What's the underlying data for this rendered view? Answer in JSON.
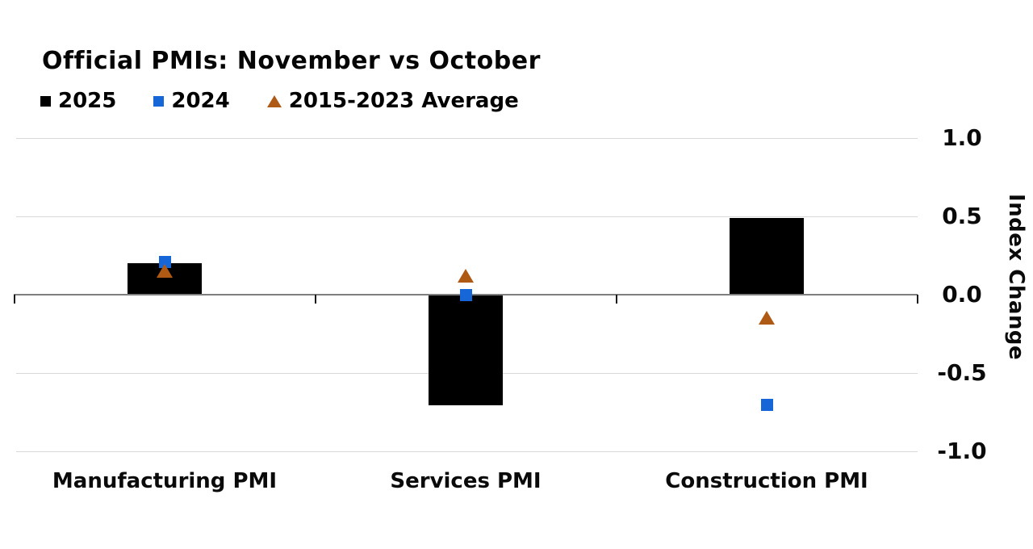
{
  "chart": {
    "title": "Official PMIs: November vs October",
    "y_axis_title": "Index Change"
  },
  "legend": {
    "items": [
      {
        "label": "2025",
        "marker": "square-icon",
        "color": "#000000"
      },
      {
        "label": "2024",
        "marker": "square-icon",
        "color": "#1766D8"
      },
      {
        "label": "2015-2023 Average",
        "marker": "triangle-icon",
        "color": "#AE5A15"
      }
    ]
  },
  "chart_data": {
    "type": "bar",
    "title": "Official PMIs: November vs October",
    "categories": [
      "Manufacturing PMI",
      "Services PMI",
      "Construction PMI"
    ],
    "series": [
      {
        "name": "2025",
        "type": "bar",
        "color": "#000000",
        "values": [
          0.2,
          -0.7,
          0.49
        ]
      },
      {
        "name": "2024",
        "type": "scatter-square",
        "color": "#1766D8",
        "values": [
          0.21,
          0.0,
          -0.7
        ]
      },
      {
        "name": "2015-2023 Average",
        "type": "scatter-triangle",
        "color": "#AE5A15",
        "values": [
          0.15,
          0.12,
          -0.15
        ]
      }
    ],
    "xlabel": "",
    "ylabel": "Index Change",
    "ylim": [
      -1.0,
      1.0
    ],
    "y_ticks": [
      1.0,
      0.5,
      0.0,
      -0.5,
      -1.0
    ],
    "y_tick_labels": [
      "1.0",
      "0.5",
      "0.0",
      "-0.5",
      "-1.0"
    ],
    "grid": true,
    "legend_position": "top-left",
    "colors": {
      "gridline": "#D8D8D8",
      "axis_line": "#7F7F7F",
      "tick": "#1a1a1a",
      "text": "#0a0a0a"
    }
  }
}
